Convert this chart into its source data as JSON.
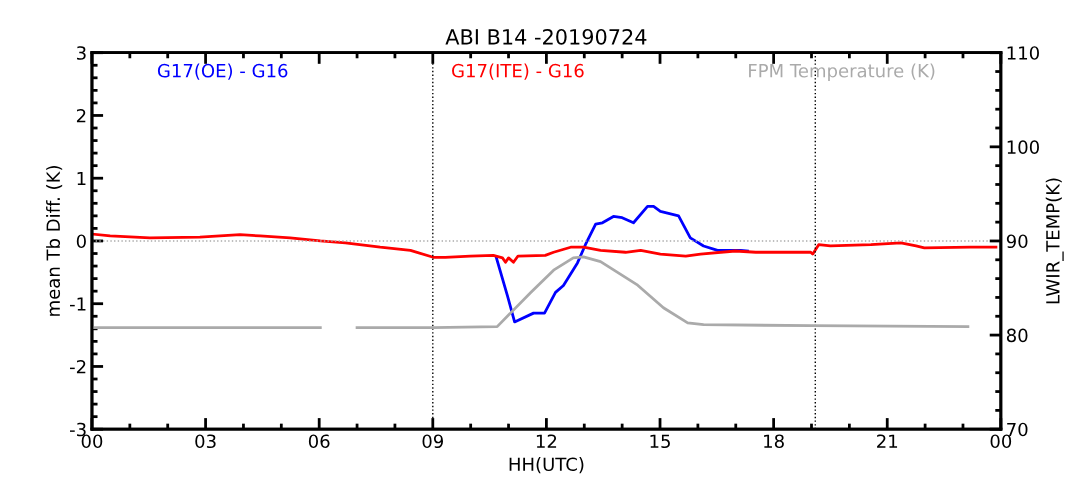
{
  "chart_data": {
    "type": "line",
    "title": "ABI B14 -20190724",
    "xlabel": "HH(UTC)",
    "ylabel": "mean Tb Diff. (K)",
    "y2label": "LWIR_TEMP(K)",
    "xlim": [
      0,
      24
    ],
    "xticks": [
      {
        "value": 0,
        "label": "00"
      },
      {
        "value": 3,
        "label": "03"
      },
      {
        "value": 6,
        "label": "06"
      },
      {
        "value": 9,
        "label": "09"
      },
      {
        "value": 12,
        "label": "12"
      },
      {
        "value": 15,
        "label": "15"
      },
      {
        "value": 18,
        "label": "18"
      },
      {
        "value": 21,
        "label": "21"
      },
      {
        "value": 24,
        "label": "00"
      }
    ],
    "ylim": [
      -3,
      3
    ],
    "yticks": [
      -3,
      -2,
      -1,
      0,
      1,
      2,
      3
    ],
    "y2lim": [
      70,
      110
    ],
    "y2ticks": [
      70,
      80,
      90,
      100,
      110
    ],
    "grid": false,
    "legend": "top",
    "line_style": "solid",
    "marker": "none",
    "ref_lines": [
      {
        "axis": "x",
        "value": 9,
        "color": "#000000",
        "line_style": "dotted"
      },
      {
        "axis": "x",
        "value": 19.1,
        "color": "#000000",
        "line_style": "dotted"
      },
      {
        "axis": "y",
        "value": 0,
        "color": "#aaaaaa",
        "line_style": "dotted"
      }
    ],
    "series": [
      {
        "name": "G17(OE) - G16",
        "color": "#0000ff",
        "x": [
          10.68,
          10.97,
          11.16,
          11.66,
          11.95,
          12.24,
          12.45,
          12.82,
          13.03,
          13.3,
          13.48,
          13.77,
          14.0,
          14.3,
          14.67,
          14.83,
          15.01,
          15.49,
          15.8,
          16.15,
          16.52,
          17.13,
          17.31
        ],
        "values": [
          -0.27,
          -0.87,
          -1.29,
          -1.15,
          -1.15,
          -0.82,
          -0.71,
          -0.35,
          -0.06,
          0.27,
          0.29,
          0.39,
          0.37,
          0.29,
          0.55,
          0.55,
          0.47,
          0.4,
          0.05,
          -0.08,
          -0.15,
          -0.15,
          -0.16
        ]
      },
      {
        "name": "G17(ITE) - G16",
        "color": "#ff0000",
        "x": [
          0,
          0.48,
          1.53,
          2.85,
          3.91,
          4.44,
          5.23,
          6.03,
          6.69,
          7.61,
          8.41,
          9.01,
          9.33,
          9.99,
          10.6,
          10.84,
          10.92,
          11.0,
          11.13,
          11.25,
          11.97,
          12.19,
          12.64,
          12.98,
          13.43,
          14.09,
          14.49,
          15.01,
          15.68,
          16.07,
          16.99,
          17.53,
          18.98,
          19.03,
          19.19,
          19.5,
          20.57,
          21.36,
          21.76,
          21.98,
          23.2,
          23.87
        ],
        "values": [
          0.11,
          0.08,
          0.05,
          0.06,
          0.1,
          0.08,
          0.05,
          0.0,
          -0.03,
          -0.1,
          -0.15,
          -0.26,
          -0.26,
          -0.24,
          -0.23,
          -0.27,
          -0.34,
          -0.27,
          -0.34,
          -0.24,
          -0.23,
          -0.18,
          -0.1,
          -0.1,
          -0.15,
          -0.18,
          -0.15,
          -0.21,
          -0.24,
          -0.21,
          -0.16,
          -0.18,
          -0.18,
          -0.21,
          -0.06,
          -0.08,
          -0.06,
          -0.03,
          -0.08,
          -0.11,
          -0.1,
          -0.1
        ]
      },
      {
        "name": "FPM Temperature (K)",
        "color": "#aaaaaa",
        "axis": "y2",
        "x": [
          0,
          3,
          6.03,
          6.5,
          7.0,
          9,
          10.7,
          11.58,
          12.19,
          12.71,
          12.98,
          13.43,
          14.41,
          15.09,
          15.73,
          16.15,
          19,
          23.13
        ],
        "values": [
          80.8,
          80.8,
          80.8,
          null,
          80.8,
          80.8,
          80.9,
          84.5,
          86.9,
          88.2,
          88.3,
          87.8,
          85.3,
          82.9,
          81.3,
          81.1,
          81.0,
          80.9
        ]
      }
    ]
  }
}
